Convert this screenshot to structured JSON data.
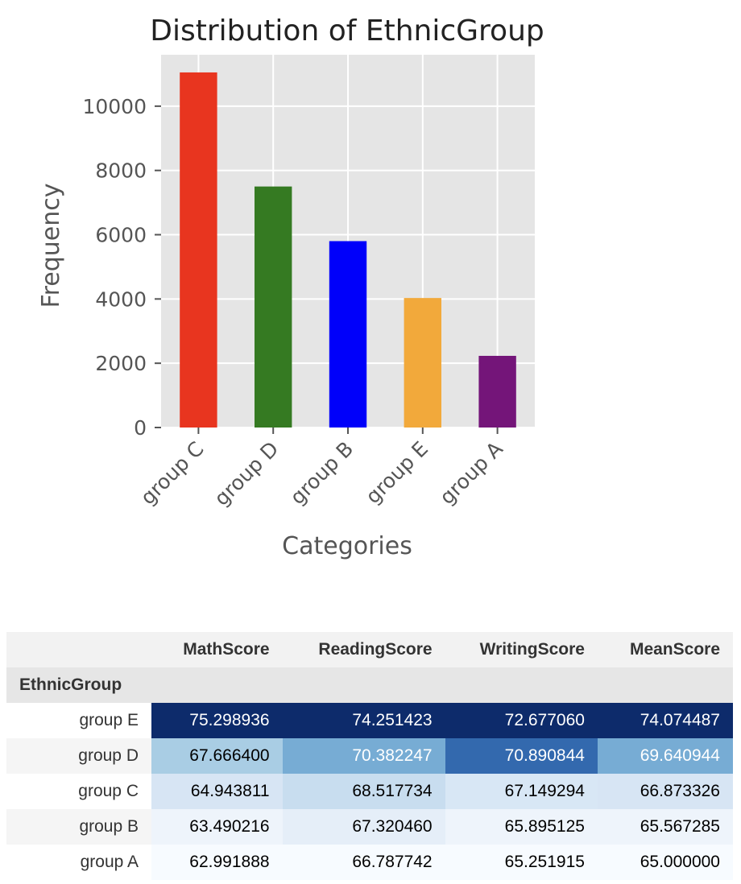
{
  "chart_data": {
    "type": "bar",
    "title": "Distribution of EthnicGroup",
    "xlabel": "Categories",
    "ylabel": "Frequency",
    "categories": [
      "group C",
      "group D",
      "group B",
      "group E",
      "group A"
    ],
    "values": [
      11050,
      7500,
      5800,
      4030,
      2230
    ],
    "colors": [
      "#e8351f",
      "#357a22",
      "#0000fa",
      "#f2a93b",
      "#741579"
    ],
    "ylim": [
      0,
      11600
    ],
    "yticks": [
      0,
      2000,
      4000,
      6000,
      8000,
      10000
    ],
    "grid": true,
    "background": "#e5e5e5"
  },
  "table": {
    "index_name": "EthnicGroup",
    "columns": [
      "MathScore",
      "ReadingScore",
      "WritingScore",
      "MeanScore"
    ],
    "rows": [
      {
        "label": "group E",
        "values": [
          "75.298936",
          "74.251423",
          "72.677060",
          "74.074487"
        ],
        "bg": [
          "#0d2b6b",
          "#0d2b6b",
          "#0d2b6b",
          "#0d2b6b"
        ],
        "fg": [
          "#ffffff",
          "#ffffff",
          "#ffffff",
          "#ffffff"
        ]
      },
      {
        "label": "group D",
        "values": [
          "67.666400",
          "70.382247",
          "70.890844",
          "69.640944"
        ],
        "bg": [
          "#a9cde4",
          "#77acd4",
          "#3369ae",
          "#77acd4"
        ],
        "fg": [
          "#000000",
          "#ffffff",
          "#ffffff",
          "#ffffff"
        ]
      },
      {
        "label": "group C",
        "values": [
          "64.943811",
          "68.517734",
          "67.149294",
          "66.873326"
        ],
        "bg": [
          "#d7e5f4",
          "#c8ddef",
          "#d8e7f5",
          "#d7e5f4"
        ],
        "fg": [
          "#000000",
          "#000000",
          "#000000",
          "#000000"
        ]
      },
      {
        "label": "group B",
        "values": [
          "63.490216",
          "67.320460",
          "65.895125",
          "65.567285"
        ],
        "bg": [
          "#eef4fb",
          "#e5eef8",
          "#eef4fb",
          "#eef4fb"
        ],
        "fg": [
          "#000000",
          "#000000",
          "#000000",
          "#000000"
        ]
      },
      {
        "label": "group A",
        "values": [
          "62.991888",
          "66.787742",
          "65.251915",
          "65.000000"
        ],
        "bg": [
          "#f7fbff",
          "#f7fbff",
          "#f7fbff",
          "#f7fbff"
        ],
        "fg": [
          "#000000",
          "#000000",
          "#000000",
          "#000000"
        ]
      }
    ]
  }
}
